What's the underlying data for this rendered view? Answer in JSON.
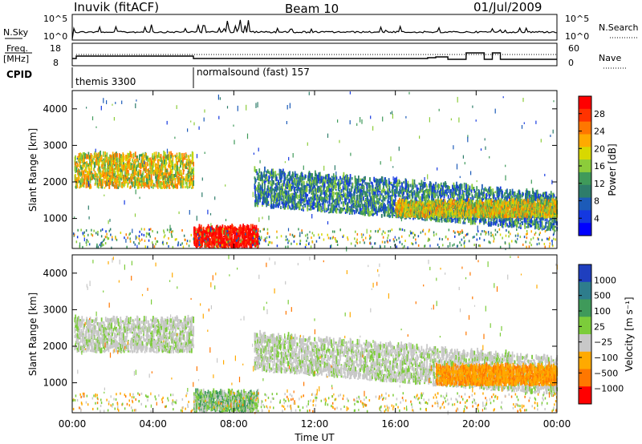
{
  "header": {
    "station": "Inuvik (fitACF)",
    "beam": "Beam 10",
    "date": "01/Jul/2009"
  },
  "top_panel": {
    "left_label": "N.Sky",
    "left_ticks": [
      "10^5",
      "10^0"
    ],
    "right_ticks": [
      "10^5",
      "10^0"
    ],
    "right_label": "N.Search"
  },
  "freq_panel": {
    "left_label_1": "Freq.",
    "left_label_2": "[MHz]",
    "left_ticks": [
      "18",
      "8"
    ],
    "right_ticks": [
      "60",
      "0"
    ],
    "right_label": "Nave"
  },
  "cpid": {
    "label": "CPID",
    "segments": [
      {
        "name": "themis 3300",
        "start_hour": 0.0
      },
      {
        "name": "normalsound (fast) 157",
        "start_hour": 6.0
      }
    ]
  },
  "chart_data": [
    {
      "type": "heatmap",
      "title": "Power",
      "ylabel": "Slant Range [km]",
      "yticks": [
        "1000",
        "2000",
        "3000",
        "4000"
      ],
      "ylim": [
        180,
        4500
      ],
      "xlim_hours": [
        0,
        24
      ],
      "colorbar_label": "Power [dB]",
      "colorbar_ticks": [
        "28",
        "24",
        "20",
        "16",
        "12",
        "8",
        "4"
      ],
      "colorbar_colors": [
        "#ff0000",
        "#ff3300",
        "#ff7700",
        "#ffaa00",
        "#d8d800",
        "#8ccc3a",
        "#3f9a5a",
        "#2e7d6a",
        "#1c5bb8",
        "#1438e0",
        "#0000ff"
      ],
      "bands": [
        {
          "t0": 0.1,
          "t1": 6.0,
          "r0": 1800,
          "r1": 2700,
          "level": "mid"
        },
        {
          "t0": 6.0,
          "t1": 9.2,
          "r0": 180,
          "r1": 700,
          "level": "high"
        },
        {
          "t0": 9.0,
          "t1": 24.0,
          "r0": 1300,
          "r1": 2300,
          "level": "low"
        },
        {
          "t0": 16.0,
          "t1": 24.0,
          "r0": 1000,
          "r1": 1400,
          "level": "mid"
        }
      ]
    },
    {
      "type": "heatmap",
      "title": "Velocity",
      "ylabel": "Slant Range [km]",
      "yticks": [
        "1000",
        "2000",
        "3000",
        "4000"
      ],
      "ylim": [
        180,
        4500
      ],
      "xlim_hours": [
        0,
        24
      ],
      "colorbar_label": "Velocity [m s⁻¹]",
      "colorbar_ticks": [
        "1000",
        "500",
        "100",
        "25",
        "−25",
        "−100",
        "−500",
        "−1000"
      ],
      "colorbar_colors": [
        "#1f3fbf",
        "#2e7d8c",
        "#3f9a5a",
        "#7ccc3a",
        "#c8c8c8",
        "#ffaa00",
        "#ff7700",
        "#ff0000"
      ],
      "bands": [
        {
          "t0": 0.1,
          "t1": 6.0,
          "r0": 1800,
          "r1": 2700,
          "level": "ground"
        },
        {
          "t0": 6.0,
          "t1": 9.2,
          "r0": 180,
          "r1": 700,
          "level": "pos"
        },
        {
          "t0": 9.0,
          "t1": 24.0,
          "r0": 1300,
          "r1": 2300,
          "level": "ground"
        },
        {
          "t0": 18.0,
          "t1": 24.0,
          "r0": 900,
          "r1": 1400,
          "level": "neg"
        }
      ]
    }
  ],
  "time_axis": {
    "ticks": [
      "00:00",
      "04:00",
      "08:00",
      "12:00",
      "16:00",
      "20:00",
      "00:00"
    ],
    "label": "Time UT"
  }
}
